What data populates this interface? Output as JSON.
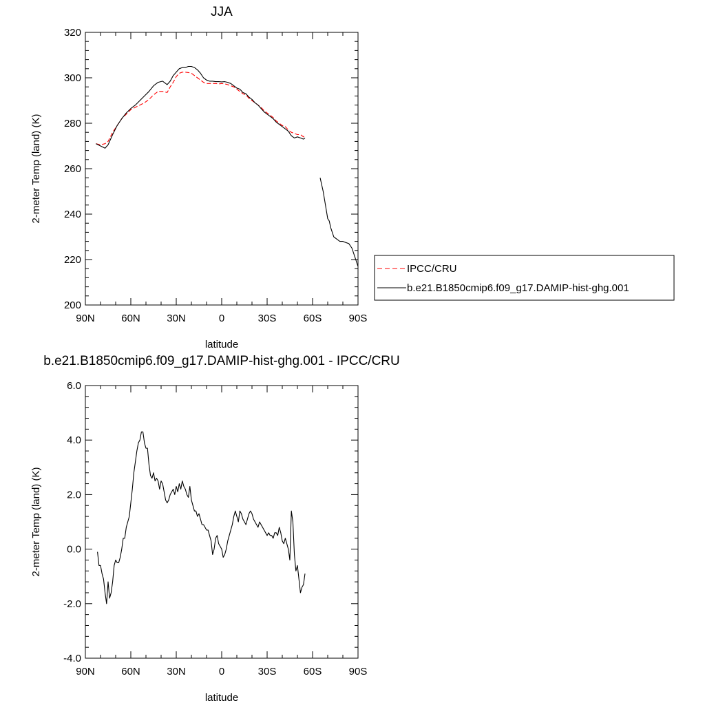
{
  "chart_data": [
    {
      "type": "line",
      "title": "JJA",
      "xlabel": "latitude",
      "ylabel": "2-meter Temp (land) (K)",
      "xlim": [
        90,
        -90
      ],
      "ylim": [
        200,
        320
      ],
      "x_ticks": [
        90,
        60,
        30,
        0,
        -30,
        -60,
        -90
      ],
      "x_tick_labels": [
        "90N",
        "60N",
        "30N",
        "0",
        "30S",
        "60S",
        "90S"
      ],
      "y_ticks": [
        200,
        220,
        240,
        260,
        280,
        300,
        320
      ],
      "y_tick_labels": [
        "200",
        "220",
        "240",
        "260",
        "280",
        "300",
        "320"
      ],
      "legend_position": "right",
      "series": [
        {
          "name": "IPCC/CRU",
          "color": "#ff0000",
          "dash": "dashed",
          "x": [
            83,
            80,
            77,
            75,
            72,
            69,
            66,
            63,
            60,
            57,
            54,
            51,
            48,
            45,
            42,
            39,
            36,
            34,
            32,
            30,
            28,
            26,
            24,
            22,
            20,
            18,
            16,
            14,
            12,
            10,
            8,
            6,
            4,
            2,
            0,
            -2,
            -4,
            -6,
            -8,
            -10,
            -12,
            -14,
            -16,
            -18,
            -20,
            -22,
            -24,
            -26,
            -28,
            -30,
            -32,
            -34,
            -36,
            -38,
            -40,
            -42,
            -44,
            -46,
            -48,
            -50,
            -52,
            -54,
            -55
          ],
          "y": [
            271,
            270.5,
            271,
            272,
            276,
            279,
            282,
            284,
            286,
            287,
            288,
            289,
            290.5,
            292.5,
            294,
            294,
            293.5,
            296,
            298,
            300.5,
            302,
            302.5,
            302.5,
            302.3,
            302,
            301,
            300,
            299,
            298,
            297.5,
            297.5,
            297.5,
            297.5,
            297.3,
            297.5,
            297.3,
            297,
            296.5,
            296,
            295,
            294,
            293,
            292.5,
            291,
            290,
            289,
            288,
            287,
            285.5,
            284.5,
            283.5,
            282.5,
            281,
            280,
            279,
            278.5,
            277,
            276,
            275.5,
            275,
            275,
            274,
            275
          ]
        },
        {
          "name": "b.e21.B1850cmip6.f09_g17.DAMIP-hist-ghg.001",
          "color": "#000000",
          "dash": "solid",
          "x": [
            83,
            80,
            77,
            75,
            72,
            69,
            66,
            63,
            60,
            57,
            54,
            51,
            48,
            45,
            42,
            39,
            36,
            34,
            32,
            30,
            28,
            26,
            24,
            22,
            20,
            18,
            16,
            14,
            12,
            10,
            8,
            6,
            4,
            2,
            0,
            -2,
            -4,
            -6,
            -8,
            -10,
            -12,
            -14,
            -16,
            -18,
            -20,
            -22,
            -24,
            -26,
            -28,
            -30,
            -32,
            -34,
            -36,
            -38,
            -40,
            -42,
            -44,
            -46,
            -48,
            -50,
            -52,
            -54,
            -55
          ],
          "y": [
            271,
            270,
            269,
            270.5,
            275,
            279,
            282,
            284.5,
            286.5,
            288,
            290,
            292,
            294,
            296.5,
            298,
            298.5,
            297,
            298.5,
            301,
            302.5,
            304,
            304.5,
            304.5,
            305,
            305,
            304.5,
            303.5,
            302,
            300,
            299,
            298.5,
            298.5,
            298.3,
            298.3,
            298.2,
            298.3,
            298,
            297.5,
            296.5,
            295.5,
            295,
            293.5,
            293,
            291.5,
            290.5,
            289,
            288,
            286.5,
            285,
            284,
            283,
            282,
            280.5,
            279.5,
            278.5,
            277.5,
            276.5,
            274.5,
            273.5,
            274,
            273.5,
            273,
            273.5
          ]
        },
        {
          "name": "",
          "color": "#000000",
          "dash": "solid",
          "x": [
            -65,
            -67,
            -68,
            -69,
            -70,
            -71,
            -72,
            -74,
            -76,
            -78,
            -80,
            -82,
            -84,
            -86,
            -88,
            -90
          ],
          "y": [
            256,
            250,
            246,
            242,
            238,
            237,
            234,
            230,
            229,
            228,
            228,
            227.5,
            227,
            225,
            221,
            217
          ]
        }
      ]
    },
    {
      "type": "line",
      "title": "b.e21.B1850cmip6.f09_g17.DAMIP-hist-ghg.001 - IPCC/CRU",
      "xlabel": "latitude",
      "ylabel": "2-meter Temp (land) (K)",
      "xlim": [
        90,
        -90
      ],
      "ylim": [
        -4.0,
        6.0
      ],
      "x_ticks": [
        90,
        60,
        30,
        0,
        -30,
        -60,
        -90
      ],
      "x_tick_labels": [
        "90N",
        "60N",
        "30N",
        "0",
        "30S",
        "60S",
        "90S"
      ],
      "y_ticks": [
        -4,
        -2,
        0,
        2,
        4,
        6
      ],
      "y_tick_labels": [
        "-4.0",
        "-2.0",
        "0.0",
        "2.0",
        "4.0",
        "6.0"
      ],
      "series": [
        {
          "name": "",
          "color": "#000000",
          "dash": "solid",
          "x": [
            82,
            81,
            80,
            79,
            78,
            77,
            76,
            75,
            74,
            73,
            72,
            71,
            70,
            69,
            68,
            67,
            66,
            65,
            64,
            63,
            62,
            61,
            60,
            59,
            58,
            57,
            56,
            55,
            54,
            53,
            52,
            51,
            50,
            49,
            48,
            47,
            46,
            45,
            44,
            43,
            42,
            41,
            40,
            39,
            38,
            37,
            36,
            35,
            34,
            33,
            32,
            31,
            30,
            29,
            28,
            27,
            26,
            25,
            24,
            23,
            22,
            21,
            20,
            19,
            18,
            17,
            16,
            15,
            14,
            13,
            12,
            11,
            10,
            9,
            8,
            7,
            6,
            5,
            4,
            3,
            2,
            1,
            0,
            -1,
            -2,
            -3,
            -4,
            -5,
            -6,
            -7,
            -8,
            -9,
            -10,
            -11,
            -12,
            -13,
            -14,
            -15,
            -16,
            -17,
            -18,
            -19,
            -20,
            -21,
            -22,
            -23,
            -24,
            -25,
            -26,
            -27,
            -28,
            -29,
            -30,
            -31,
            -32,
            -33,
            -34,
            -35,
            -36,
            -37,
            -38,
            -39,
            -40,
            -41,
            -42,
            -43,
            -44,
            -45,
            -46,
            -47,
            -48,
            -49,
            -50,
            -51,
            -52,
            -53,
            -54,
            -55
          ],
          "y": [
            -0.1,
            -0.6,
            -0.6,
            -0.9,
            -1.1,
            -1.6,
            -2.0,
            -1.2,
            -1.8,
            -1.6,
            -1.2,
            -0.6,
            -0.4,
            -0.5,
            -0.5,
            -0.3,
            0.0,
            0.4,
            0.4,
            0.8,
            1.0,
            1.2,
            1.7,
            2.2,
            2.8,
            3.2,
            3.6,
            3.9,
            4.0,
            4.3,
            4.3,
            3.9,
            3.7,
            3.7,
            3.1,
            2.7,
            2.6,
            2.8,
            2.5,
            2.6,
            2.5,
            2.2,
            2.5,
            2.4,
            2.1,
            1.8,
            1.7,
            1.8,
            2.0,
            2.1,
            2.2,
            2.0,
            2.3,
            2.1,
            2.4,
            2.2,
            2.5,
            2.3,
            2.2,
            2.0,
            1.9,
            2.3,
            1.8,
            1.6,
            1.4,
            1.4,
            1.2,
            1.3,
            1.1,
            0.9,
            0.9,
            0.8,
            0.7,
            0.7,
            0.5,
            0.3,
            -0.2,
            0.0,
            0.4,
            0.5,
            0.2,
            0.1,
            0.0,
            -0.3,
            -0.2,
            0.0,
            0.3,
            0.5,
            0.7,
            0.9,
            1.2,
            1.4,
            1.2,
            1.0,
            1.4,
            1.3,
            1.1,
            1.0,
            0.9,
            1.1,
            1.3,
            1.4,
            1.3,
            1.1,
            1.0,
            0.9,
            0.8,
            1.0,
            0.9,
            0.8,
            0.7,
            0.6,
            0.5,
            0.6,
            0.5,
            0.5,
            0.4,
            0.6,
            0.6,
            0.5,
            0.8,
            0.6,
            0.3,
            0.2,
            0.4,
            0.2,
            0.0,
            -0.4,
            1.4,
            1.0,
            -0.2,
            -0.8,
            -0.6,
            -1.1,
            -1.6,
            -1.4,
            -1.3,
            -0.9
          ]
        }
      ]
    }
  ],
  "legend": [
    {
      "label": "IPCC/CRU",
      "color": "#ff0000",
      "dash": "dashed"
    },
    {
      "label": "b.e21.B1850cmip6.f09_g17.DAMIP-hist-ghg.001",
      "color": "#000000",
      "dash": "solid"
    }
  ]
}
